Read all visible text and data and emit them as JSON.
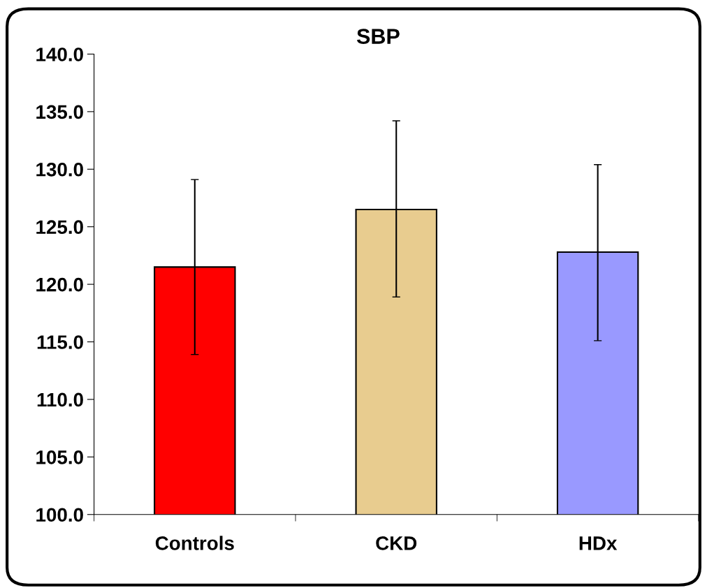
{
  "chart_data": {
    "type": "bar",
    "title": "SBP",
    "categories": [
      "Controls",
      "CKD",
      "HDx"
    ],
    "values": [
      121.5,
      126.5,
      122.8
    ],
    "colors": [
      "#ff0000",
      "#e8cc8f",
      "#9999ff"
    ],
    "errors": [
      [
        113.9,
        129.1
      ],
      [
        118.9,
        134.2
      ],
      [
        115.1,
        130.4
      ]
    ],
    "ylim": [
      100,
      140
    ],
    "yticks": [
      {
        "value": 100,
        "label": "100.0"
      },
      {
        "value": 105,
        "label": "105.0"
      },
      {
        "value": 110,
        "label": "110.0"
      },
      {
        "value": 115,
        "label": "115.0"
      },
      {
        "value": 120,
        "label": "120.0"
      },
      {
        "value": 125,
        "label": "125.0"
      },
      {
        "value": 130,
        "label": "130.0"
      },
      {
        "value": 135,
        "label": "135.0"
      },
      {
        "value": 140,
        "label": "140.0"
      }
    ],
    "grid": false,
    "legend": false
  }
}
